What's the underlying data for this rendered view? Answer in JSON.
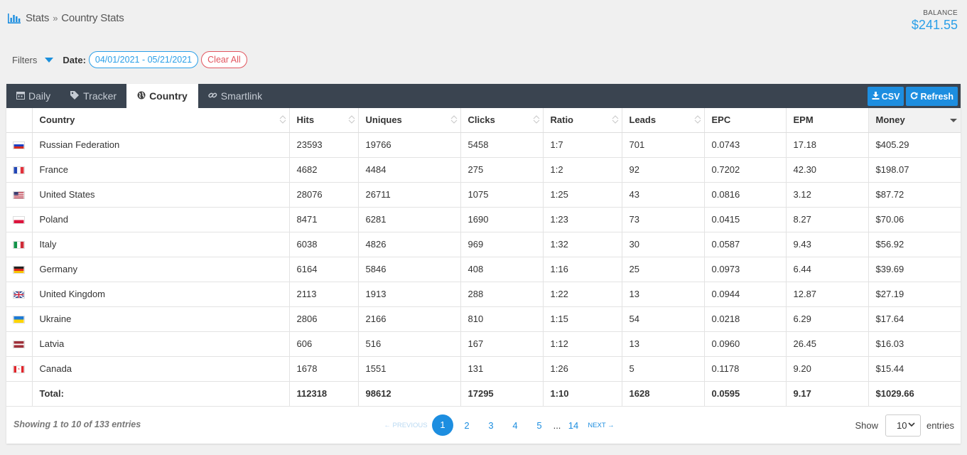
{
  "breadcrumb": {
    "root": "Stats",
    "separator": "»",
    "current": "Country Stats"
  },
  "balance": {
    "label": "BALANCE",
    "value": "$241.55"
  },
  "filters": {
    "label": "Filters",
    "date_label": "Date:",
    "date_range": "04/01/2021 - 05/21/2021",
    "clear_label": "Clear All"
  },
  "tabs": [
    {
      "label": "Daily",
      "icon": "calendar-icon"
    },
    {
      "label": "Tracker",
      "icon": "tag-icon"
    },
    {
      "label": "Country",
      "icon": "globe-icon"
    },
    {
      "label": "Smartlink",
      "icon": "link-icon"
    }
  ],
  "toolbar": {
    "csv_label": "CSV",
    "refresh_label": "Refresh"
  },
  "table": {
    "columns": [
      "Country",
      "Hits",
      "Uniques",
      "Clicks",
      "Ratio",
      "Leads",
      "EPC",
      "EPM",
      "Money"
    ],
    "rows": [
      {
        "country": "Russian Federation",
        "flag": [
          "#ffffff",
          "#1c3fc2",
          "#d52b1e"
        ],
        "hits": "23593",
        "uniques": "19766",
        "clicks": "5458",
        "ratio": "1:7",
        "leads": "701",
        "epc": "0.0743",
        "epm": "17.18",
        "money": "$405.29"
      },
      {
        "country": "France",
        "flag": [
          "#2246b5",
          "#ffffff",
          "#e1323c"
        ],
        "hits": "4682",
        "uniques": "4484",
        "clicks": "275",
        "ratio": "1:2",
        "leads": "92",
        "epc": "0.7202",
        "epm": "42.30",
        "money": "$198.07"
      },
      {
        "country": "United States",
        "flag": [
          "#b22234",
          "#ffffff",
          "#3c3b6e"
        ],
        "hits": "28076",
        "uniques": "26711",
        "clicks": "1075",
        "ratio": "1:25",
        "leads": "43",
        "epc": "0.0816",
        "epm": "3.12",
        "money": "$87.72"
      },
      {
        "country": "Poland",
        "flag": [
          "#ffffff",
          "#dc143c"
        ],
        "hits": "8471",
        "uniques": "6281",
        "clicks": "1690",
        "ratio": "1:23",
        "leads": "73",
        "epc": "0.0415",
        "epm": "8.27",
        "money": "$70.06"
      },
      {
        "country": "Italy",
        "flag": [
          "#129248",
          "#ffffff",
          "#ce2b37"
        ],
        "hits": "6038",
        "uniques": "4826",
        "clicks": "969",
        "ratio": "1:32",
        "leads": "30",
        "epc": "0.0587",
        "epm": "9.43",
        "money": "$56.92"
      },
      {
        "country": "Germany",
        "flag": [
          "#222222",
          "#dd2a1f",
          "#f7c400"
        ],
        "hits": "6164",
        "uniques": "5846",
        "clicks": "408",
        "ratio": "1:16",
        "leads": "25",
        "epc": "0.0973",
        "epm": "6.44",
        "money": "$39.69"
      },
      {
        "country": "United Kingdom",
        "flag": [
          "#1f3d8a",
          "#ffffff",
          "#cf142b"
        ],
        "hits": "2113",
        "uniques": "1913",
        "clicks": "288",
        "ratio": "1:22",
        "leads": "13",
        "epc": "0.0944",
        "epm": "12.87",
        "money": "$27.19"
      },
      {
        "country": "Ukraine",
        "flag": [
          "#1d7ad6",
          "#ffd500"
        ],
        "hits": "2806",
        "uniques": "2166",
        "clicks": "810",
        "ratio": "1:15",
        "leads": "54",
        "epc": "0.0218",
        "epm": "6.29",
        "money": "$17.64"
      },
      {
        "country": "Latvia",
        "flag": [
          "#9e3039",
          "#ffffff",
          "#9e3039"
        ],
        "hits": "606",
        "uniques": "516",
        "clicks": "167",
        "ratio": "1:12",
        "leads": "13",
        "epc": "0.0960",
        "epm": "26.45",
        "money": "$16.03"
      },
      {
        "country": "Canada",
        "flag": [
          "#e0252b",
          "#ffffff",
          "#e0252b"
        ],
        "hits": "1678",
        "uniques": "1551",
        "clicks": "131",
        "ratio": "1:26",
        "leads": "5",
        "epc": "0.1178",
        "epm": "9.20",
        "money": "$15.44"
      }
    ],
    "total": {
      "label": "Total:",
      "hits": "112318",
      "uniques": "98612",
      "clicks": "17295",
      "ratio": "1:10",
      "leads": "1628",
      "epc": "0.0595",
      "epm": "9.17",
      "money": "$1029.66"
    }
  },
  "footer": {
    "info": "Showing 1 to 10 of 133 entries",
    "pagination": {
      "prev": "← PREVIOUS",
      "pages": [
        "1",
        "2",
        "3",
        "4",
        "5"
      ],
      "ellipsis": "...",
      "last": "14",
      "next": "NEXT →",
      "current": "1"
    },
    "show_label": "Show",
    "page_size": "10",
    "entries_label": "entries"
  },
  "colors": {
    "accent": "#1d8ee0",
    "danger": "#e2555e",
    "tabbar": "#3a4450"
  }
}
